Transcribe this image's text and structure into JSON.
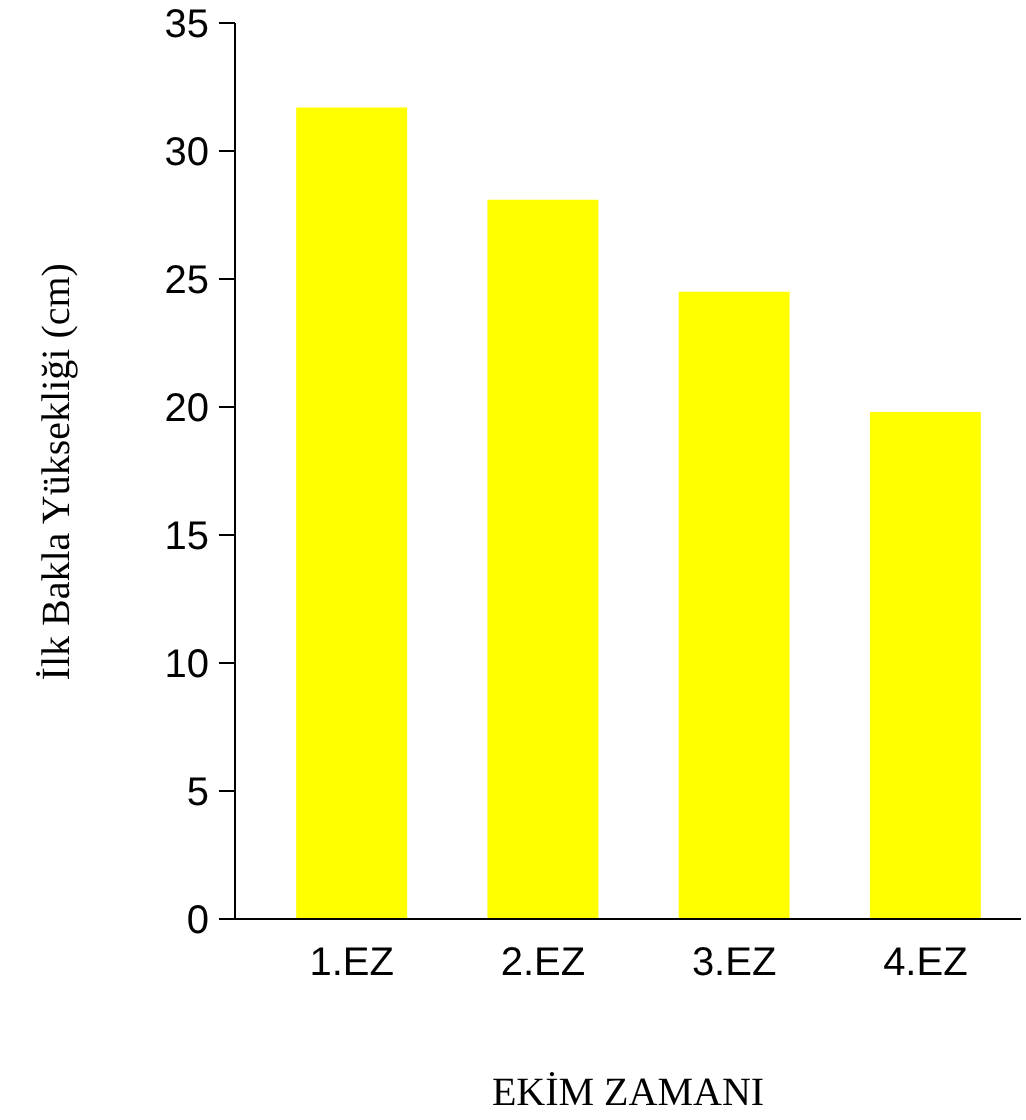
{
  "chart_data": {
    "type": "bar",
    "xlabel": "EKİM ZAMANI",
    "ylabel": "İlk Bakla Yüksekliği (cm)",
    "categories": [
      "1.EZ",
      "2.EZ",
      "3.EZ",
      "4.EZ"
    ],
    "values": [
      31.7,
      28.1,
      24.5,
      19.8
    ],
    "color": "#ffff00",
    "ylim": [
      0,
      35
    ],
    "yticks": [
      0,
      5,
      10,
      15,
      20,
      25,
      30,
      35
    ],
    "grid": false
  }
}
